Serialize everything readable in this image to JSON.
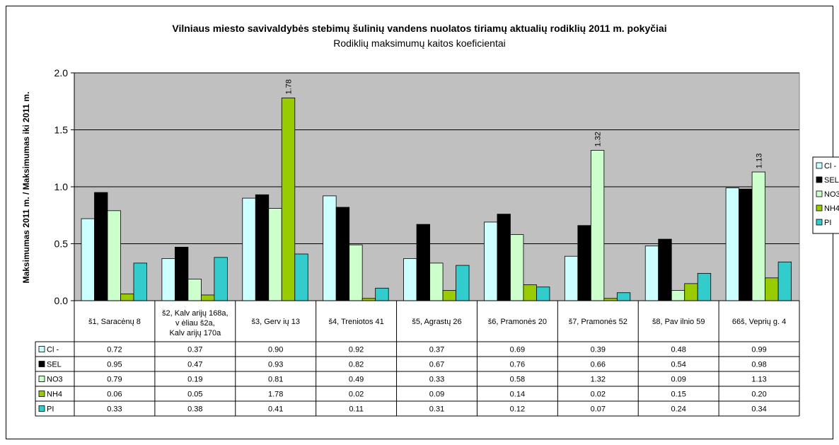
{
  "chart_data": {
    "type": "bar",
    "title": "Vilniaus miesto savivaldybės stebimų šulinių vandens nuolatos tiriamų aktualių rodiklių 2011 m. pokyčiai",
    "subtitle": "Rodiklių maksimumų kaitos koeficientai",
    "ylabel": "Maksimumas 2011 m. / Maksimumas iki 2011 m.",
    "xlabel": "",
    "ylim": [
      0,
      2.0
    ],
    "yticks": [
      "0.0",
      "0.5",
      "1.0",
      "1.5",
      "2.0"
    ],
    "grid": true,
    "legend_position": "right",
    "data_table": true,
    "categories": [
      [
        "š1, Saracėnų 8"
      ],
      [
        "š2, Kalv arijų 168a,",
        "v ėliau š2a,",
        "Kalv arijų 170a"
      ],
      [
        "š3, Gerv ių 13"
      ],
      [
        "š4, Treniotos 41"
      ],
      [
        "š5, Agrastų 26"
      ],
      [
        "š6, Pramonės 20"
      ],
      [
        "š7, Pramonės 52"
      ],
      [
        "š8, Pav ilnio 59"
      ],
      [
        "66š, Veprių g. 4"
      ]
    ],
    "series": [
      {
        "name": "Cl -",
        "color": "#ccffff",
        "values": [
          0.72,
          0.37,
          0.9,
          0.92,
          0.37,
          0.69,
          0.39,
          0.48,
          0.99
        ],
        "labels": [
          "0.72",
          "0.37",
          "0.90",
          "0.92",
          "0.37",
          "0.69",
          "0.39",
          "0.48",
          "0.99"
        ]
      },
      {
        "name": "SEL",
        "color": "#000000",
        "values": [
          0.95,
          0.47,
          0.93,
          0.82,
          0.67,
          0.76,
          0.66,
          0.54,
          0.98
        ],
        "labels": [
          "0.95",
          "0.47",
          "0.93",
          "0.82",
          "0.67",
          "0.76",
          "0.66",
          "0.54",
          "0.98"
        ]
      },
      {
        "name": "NO3",
        "color": "#ccffcc",
        "values": [
          0.79,
          0.19,
          0.81,
          0.49,
          0.33,
          0.58,
          1.32,
          0.09,
          1.13
        ],
        "labels": [
          "0.79",
          "0.19",
          "0.81",
          "0.49",
          "0.33",
          "0.58",
          "1.32",
          "0.09",
          "1.13"
        ]
      },
      {
        "name": "NH4",
        "color": "#99cc00",
        "values": [
          0.06,
          0.05,
          1.78,
          0.02,
          0.09,
          0.14,
          0.02,
          0.15,
          0.2
        ],
        "labels": [
          "0.06",
          "0.05",
          "1.78",
          "0.02",
          "0.09",
          "0.14",
          "0.02",
          "0.15",
          "0.20"
        ]
      },
      {
        "name": "PI",
        "color": "#33cccc",
        "values": [
          0.33,
          0.38,
          0.41,
          0.11,
          0.31,
          0.12,
          0.07,
          0.24,
          0.34
        ],
        "labels": [
          "0.33",
          "0.38",
          "0.41",
          "0.11",
          "0.31",
          "0.12",
          "0.07",
          "0.24",
          "0.34"
        ]
      }
    ],
    "data_labels": [
      {
        "series": 3,
        "category": 2,
        "text": "1.78"
      },
      {
        "series": 2,
        "category": 6,
        "text": "1.32"
      },
      {
        "series": 2,
        "category": 8,
        "text": "1.13"
      }
    ],
    "plot_background": "#c0c0c0"
  }
}
